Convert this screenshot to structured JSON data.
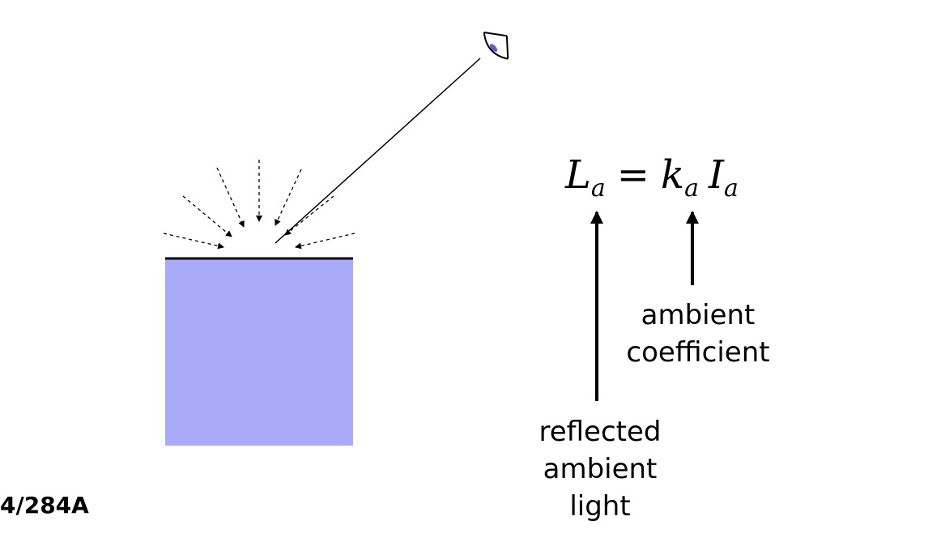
{
  "equation": {
    "lhs_symbol": "L",
    "lhs_sub": "a",
    "operator": "=",
    "coef_symbol": "k",
    "coef_sub": "a",
    "intensity_symbol": "I",
    "intensity_sub": "a"
  },
  "annotations": {
    "ambient_coefficient": [
      "ambient",
      "coefficient"
    ],
    "reflected_ambient_light": [
      "reflected",
      "ambient",
      "light"
    ]
  },
  "footer": {
    "course_code": "4/284A"
  },
  "colors": {
    "surface_fill": "#aaabf8",
    "eye_iris": "#5b5fd6",
    "ink": "#000000"
  },
  "icons": {
    "viewer": "eye-icon"
  }
}
